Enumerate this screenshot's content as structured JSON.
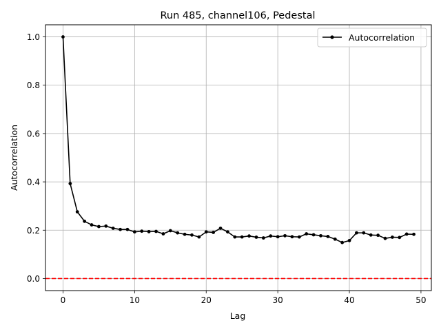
{
  "chart_data": {
    "type": "line",
    "title": "Run 485, channel106, Pedestal",
    "xlabel": "Lag",
    "ylabel": "Autocorrelation",
    "xlim": [
      -2.45,
      51.45
    ],
    "ylim": [
      -0.05,
      1.05
    ],
    "xticks": [
      0,
      10,
      20,
      30,
      40,
      50
    ],
    "yticks": [
      0.0,
      0.2,
      0.4,
      0.6,
      0.8,
      1.0
    ],
    "xtick_labels": [
      "0",
      "10",
      "20",
      "30",
      "40",
      "50"
    ],
    "ytick_labels": [
      "0.0",
      "0.2",
      "0.4",
      "0.6",
      "0.8",
      "1.0"
    ],
    "grid": true,
    "legend_position": "top-right",
    "series": [
      {
        "name": "Autocorrelation",
        "color": "#000000",
        "marker": "circle",
        "x": [
          0,
          1,
          2,
          3,
          4,
          5,
          6,
          7,
          8,
          9,
          10,
          11,
          12,
          13,
          14,
          15,
          16,
          17,
          18,
          19,
          20,
          21,
          22,
          23,
          24,
          25,
          26,
          27,
          28,
          29,
          30,
          31,
          32,
          33,
          34,
          35,
          36,
          37,
          38,
          39,
          40,
          41,
          42,
          43,
          44,
          45,
          46,
          47,
          48,
          49
        ],
        "y": [
          1.0,
          0.393,
          0.276,
          0.237,
          0.222,
          0.215,
          0.217,
          0.208,
          0.203,
          0.203,
          0.193,
          0.196,
          0.194,
          0.195,
          0.185,
          0.198,
          0.189,
          0.183,
          0.18,
          0.172,
          0.193,
          0.191,
          0.208,
          0.193,
          0.172,
          0.172,
          0.176,
          0.171,
          0.168,
          0.176,
          0.173,
          0.177,
          0.173,
          0.172,
          0.185,
          0.181,
          0.177,
          0.174,
          0.163,
          0.149,
          0.157,
          0.189,
          0.189,
          0.18,
          0.179,
          0.166,
          0.171,
          0.17,
          0.184,
          0.183
        ]
      }
    ],
    "reference_lines": [
      {
        "axis": "y",
        "value": 0.0,
        "color": "#ff0000",
        "style": "dashed"
      }
    ]
  }
}
